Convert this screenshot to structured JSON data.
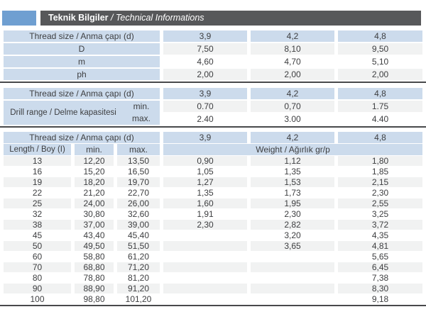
{
  "header": {
    "title_bold": "Teknik Bilgiler",
    "title_separator": " / ",
    "title_italic": "Technical Informations"
  },
  "colors": {
    "accent_blue": "#6f9fd1",
    "title_bar_gray": "#57585a",
    "cell_blue": "#ccdbec",
    "stripe_gray": "#f1f2f2",
    "rule_dark": "#48494b"
  },
  "thread_table": {
    "header": {
      "label": "Thread size / Anma çapı (d)",
      "cols": [
        "3,9",
        "4,2",
        "4,8"
      ]
    },
    "rows": [
      {
        "label": "D",
        "values": [
          "7,50",
          "8,10",
          "9,50"
        ]
      },
      {
        "label": "m",
        "values": [
          "4,60",
          "4,70",
          "5,10"
        ]
      },
      {
        "label": "ph",
        "values": [
          "2,00",
          "2,00",
          "2,00"
        ]
      }
    ]
  },
  "drill_table": {
    "header": {
      "label": "Thread size / Anma çapı (d)",
      "cols": [
        "3,9",
        "4,2",
        "4,8"
      ]
    },
    "row_label": "Drill range / Delme kapasitesi",
    "rows": [
      {
        "label": "min.",
        "values": [
          "0.70",
          "0,70",
          "1.75"
        ]
      },
      {
        "label": "max.",
        "values": [
          "2.40",
          "3.00",
          "4.40"
        ]
      }
    ]
  },
  "length_table": {
    "header1": {
      "label": "Thread size / Anma çapı (d)",
      "cols": [
        "3,9",
        "4,2",
        "4,8"
      ]
    },
    "header2": {
      "length": "Length / Boy (I)",
      "min": "min.",
      "max": "max.",
      "weight": "Weight / Ağırlık gr/p"
    },
    "rows": [
      [
        "13",
        "12,20",
        "13,50",
        "0,90",
        "1,12",
        "1,80"
      ],
      [
        "16",
        "15,20",
        "16,50",
        "1,05",
        "1,35",
        "1,85"
      ],
      [
        "19",
        "18,20",
        "19,70",
        "1,27",
        "1,53",
        "2,15"
      ],
      [
        "22",
        "21,20",
        "22,70",
        "1,35",
        "1,73",
        "2,30"
      ],
      [
        "25",
        "24,00",
        "26,00",
        "1,60",
        "1,95",
        "2,55"
      ],
      [
        "32",
        "30,80",
        "32,60",
        "1,91",
        "2,30",
        "3,25"
      ],
      [
        "38",
        "37,00",
        "39,00",
        "2,30",
        "2,82",
        "3,72"
      ],
      [
        "45",
        "43,40",
        "45,40",
        "",
        "3,20",
        "4,35"
      ],
      [
        "50",
        "49,50",
        "51,50",
        "",
        "3,65",
        "4,81"
      ],
      [
        "60",
        "58,80",
        "61,20",
        "",
        "",
        "5,65"
      ],
      [
        "70",
        "68,80",
        "71,20",
        "",
        "",
        "6,45"
      ],
      [
        "80",
        "78,80",
        "81,20",
        "",
        "",
        "7,38"
      ],
      [
        "90",
        "88,90",
        "91,20",
        "",
        "",
        "8,30"
      ],
      [
        "100",
        "98,80",
        "101,20",
        "",
        "",
        "9,18"
      ]
    ]
  }
}
